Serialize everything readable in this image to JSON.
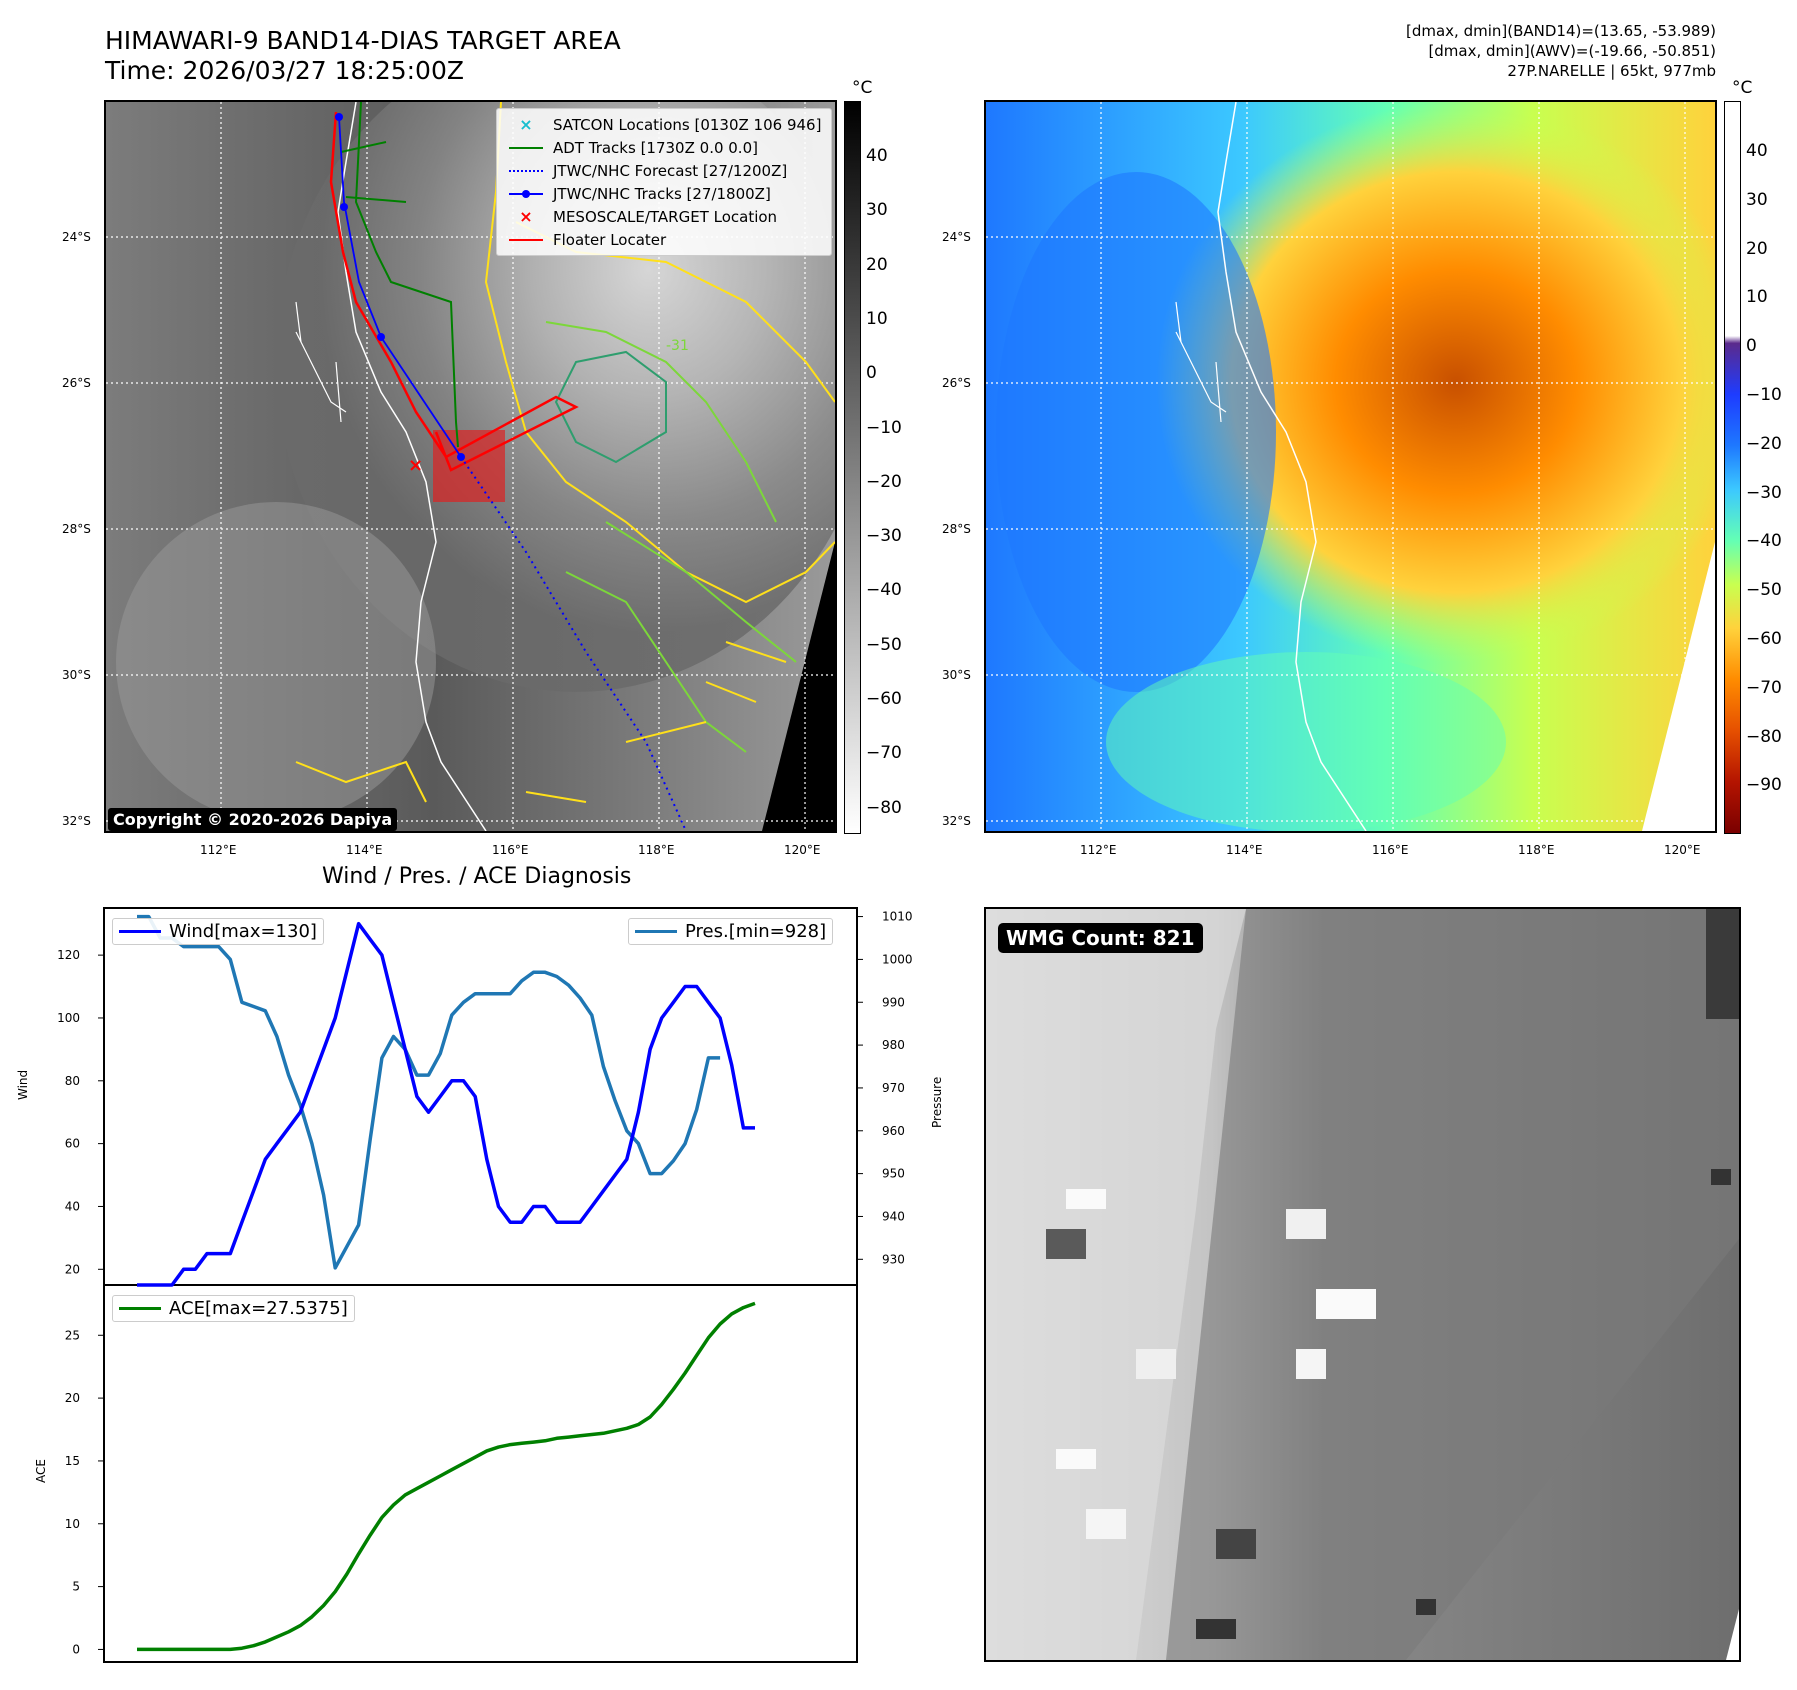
{
  "header": {
    "title_line1": "HIMAWARI-9 BAND14-DIAS TARGET AREA",
    "title_line2": "Time: 2026/03/27 18:25:00Z",
    "info_line1": "[dmax, dmin](BAND14)=(13.65, -53.989)",
    "info_line2": "[dmax, dmin](AWV)=(-19.66, -50.851)",
    "info_line3": "27P.NARELLE | 65kt, 977mb"
  },
  "map": {
    "lat_labels": [
      "24°S",
      "26°S",
      "28°S",
      "30°S",
      "32°S"
    ],
    "lon_labels": [
      "112°E",
      "114°E",
      "116°E",
      "118°E",
      "120°E"
    ],
    "unit": "°C",
    "copyright": "Copyright © 2020-2026 Dapiya",
    "contour_label": "-31",
    "legend": [
      {
        "label": "SATCON Locations [0130Z 106 946]",
        "icon": "cyan-x-marker",
        "color": "#17becf"
      },
      {
        "label": "ADT Tracks [1730Z 0.0 0.0]",
        "icon": "green-line",
        "color": "#008000"
      },
      {
        "label": "JTWC/NHC Forecast [27/1200Z]",
        "icon": "blue-dotted-line",
        "color": "#0000ff"
      },
      {
        "label": "JTWC/NHC Tracks [27/1800Z]",
        "icon": "blue-line-dot-marker",
        "color": "#0000ff"
      },
      {
        "label": "MESOSCALE/TARGET Location",
        "icon": "red-x-marker",
        "color": "#ff0000"
      },
      {
        "label": "Floater Locater",
        "icon": "red-line",
        "color": "#ff0000"
      }
    ],
    "left_colorbar": {
      "ticks": [
        "40",
        "30",
        "20",
        "10",
        "0",
        "−10",
        "−20",
        "−30",
        "−40",
        "−50",
        "−60",
        "−70",
        "−80"
      ],
      "colors": [
        "#000000",
        "#ffffff"
      ]
    },
    "right_colorbar": {
      "ticks": [
        "40",
        "30",
        "20",
        "10",
        "0",
        "−10",
        "−20",
        "−30",
        "−40",
        "−50",
        "−60",
        "−70",
        "−80",
        "−90"
      ],
      "colors": [
        "#ffffff",
        "#5b2a8c",
        "#1e3cff",
        "#1e78ff",
        "#3cc8ff",
        "#64ffb4",
        "#c8ff50",
        "#ffd23c",
        "#ff8c00",
        "#e65000",
        "#b41400",
        "#7a0000"
      ]
    }
  },
  "diagnosis": {
    "title": "Wind / Pres. / ACE Diagnosis",
    "wind_ylabel": "Wind",
    "pres_ylabel": "Pressure",
    "ace_ylabel": "ACE",
    "wind_legend": "Wind[max=130]",
    "pres_legend": "Pres.[min=928]",
    "ace_legend": "ACE[max=27.5375]",
    "wind_ticks": [
      "120",
      "100",
      "80",
      "60",
      "40",
      "20"
    ],
    "pres_ticks": [
      "1010",
      "1000",
      "990",
      "980",
      "970",
      "960",
      "950",
      "940",
      "930"
    ],
    "ace_ticks": [
      "25",
      "20",
      "15",
      "10",
      "5",
      "0"
    ]
  },
  "wmg": {
    "label": "WMG Count: 821"
  },
  "chart_data": [
    {
      "type": "line",
      "title": "Wind / Pres. / ACE Diagnosis",
      "x": [
        0,
        1,
        2,
        3,
        4,
        5,
        6,
        7,
        8,
        9,
        10,
        11,
        12,
        13,
        14,
        15,
        16,
        17,
        18,
        19,
        20,
        21,
        22,
        23,
        24,
        25,
        26,
        27,
        28,
        29,
        30,
        31,
        32,
        33,
        34,
        35,
        36,
        37,
        38,
        39,
        40,
        41,
        42,
        43,
        44,
        45,
        46,
        47,
        48,
        49,
        50,
        51,
        52,
        53,
        54,
        55,
        56,
        57,
        58,
        59
      ],
      "ylabel": "Wind",
      "ylim": [
        15,
        135
      ],
      "series": [
        {
          "name": "Wind[max=130]",
          "color": "#0000ff",
          "values": [
            15,
            15,
            15,
            15,
            20,
            20,
            25,
            25,
            25,
            35,
            45,
            55,
            60,
            65,
            70,
            80,
            90,
            100,
            115,
            130,
            125,
            120,
            105,
            90,
            75,
            70,
            75,
            80,
            80,
            75,
            55,
            40,
            35,
            35,
            40,
            40,
            35,
            35,
            35,
            40,
            45,
            50,
            55,
            70,
            90,
            100,
            105,
            110,
            110,
            105,
            100,
            85,
            65,
            65,
            null,
            null,
            null,
            null,
            null,
            null
          ]
        }
      ]
    },
    {
      "type": "line",
      "ylabel": "Pressure",
      "ylim": [
        924,
        1012
      ],
      "series": [
        {
          "name": "Pres.[min=928]",
          "color": "#1f77b4",
          "values": [
            1010,
            1010,
            1005,
            1005,
            1003,
            1003,
            1003,
            1003,
            1000,
            990,
            989,
            988,
            982,
            973,
            966,
            957,
            945,
            928,
            933,
            938,
            958,
            977,
            982,
            979,
            973,
            973,
            978,
            987,
            990,
            992,
            992,
            992,
            992,
            995,
            997,
            997,
            996,
            994,
            991,
            987,
            975,
            967,
            960,
            957,
            950,
            950,
            953,
            957,
            965,
            977,
            977,
            null,
            null,
            null,
            null,
            null,
            null,
            null,
            null,
            null
          ]
        }
      ]
    },
    {
      "type": "line",
      "ylabel": "ACE",
      "ylim": [
        -1,
        29
      ],
      "series": [
        {
          "name": "ACE[max=27.5375]",
          "color": "#008000",
          "values": [
            0,
            0,
            0,
            0,
            0,
            0,
            0,
            0,
            0,
            0.1,
            0.3,
            0.6,
            1.0,
            1.4,
            1.9,
            2.6,
            3.5,
            4.6,
            6.0,
            7.6,
            9.1,
            10.5,
            11.5,
            12.3,
            12.8,
            13.3,
            13.8,
            14.3,
            14.8,
            15.3,
            15.8,
            16.1,
            16.3,
            16.4,
            16.5,
            16.6,
            16.8,
            16.9,
            17.0,
            17.1,
            17.2,
            17.4,
            17.6,
            17.9,
            18.5,
            19.5,
            20.7,
            22.0,
            23.4,
            24.8,
            25.9,
            26.7,
            27.2,
            27.5375,
            null,
            null,
            null,
            null,
            null,
            null
          ]
        }
      ]
    }
  ]
}
